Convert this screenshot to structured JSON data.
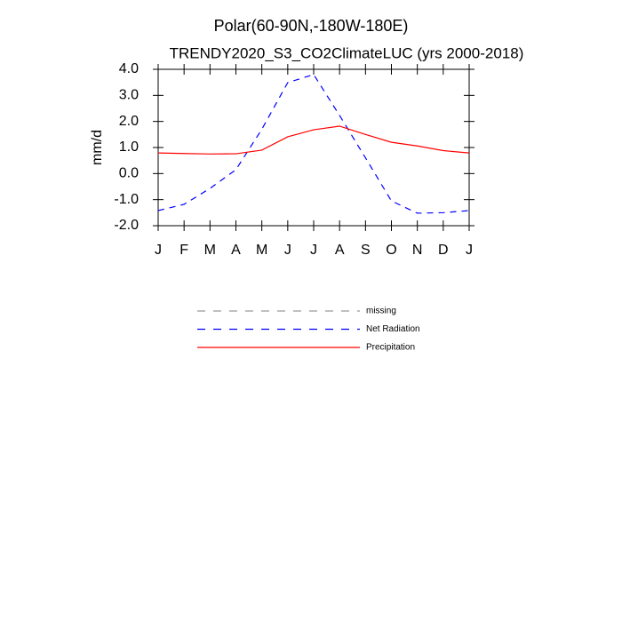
{
  "chart_data": {
    "type": "line",
    "title": "Polar(60-90N,-180W-180E)",
    "subtitle": "TRENDY2020_S3_CO2ClimateLUC (yrs 2000-2018)",
    "y_label": "mm/d",
    "categories": [
      "J",
      "F",
      "M",
      "A",
      "M",
      "J",
      "J",
      "A",
      "S",
      "O",
      "N",
      "D",
      "J"
    ],
    "series": [
      {
        "name": "missing",
        "color": "#999999",
        "dash": true,
        "values": [
          null,
          null,
          null,
          null,
          null,
          null,
          null,
          null,
          null,
          null,
          null,
          null,
          null
        ]
      },
      {
        "name": "Net Radiation",
        "color": "#0000ff",
        "dash": true,
        "values": [
          -1.42,
          -1.18,
          -0.57,
          0.15,
          1.7,
          3.49,
          3.8,
          2.23,
          0.6,
          -1.05,
          -1.52,
          -1.5,
          -1.42
        ]
      },
      {
        "name": "Precipitation",
        "color": "#ff0000",
        "dash": false,
        "values": [
          0.79,
          0.77,
          0.75,
          0.76,
          0.9,
          1.41,
          1.68,
          1.82,
          1.5,
          1.2,
          1.06,
          0.88,
          0.79
        ]
      }
    ],
    "ylim": [
      -2,
      4
    ],
    "yticks": [
      {
        "value": 4,
        "label": "4.0"
      },
      {
        "value": 3,
        "label": "3.0"
      },
      {
        "value": 2,
        "label": "2.0"
      },
      {
        "value": 1,
        "label": "1.0"
      },
      {
        "value": 0,
        "label": "0.0"
      },
      {
        "value": -1,
        "label": "-1.0"
      },
      {
        "value": -2,
        "label": "-2.0"
      }
    ],
    "grid": false
  }
}
